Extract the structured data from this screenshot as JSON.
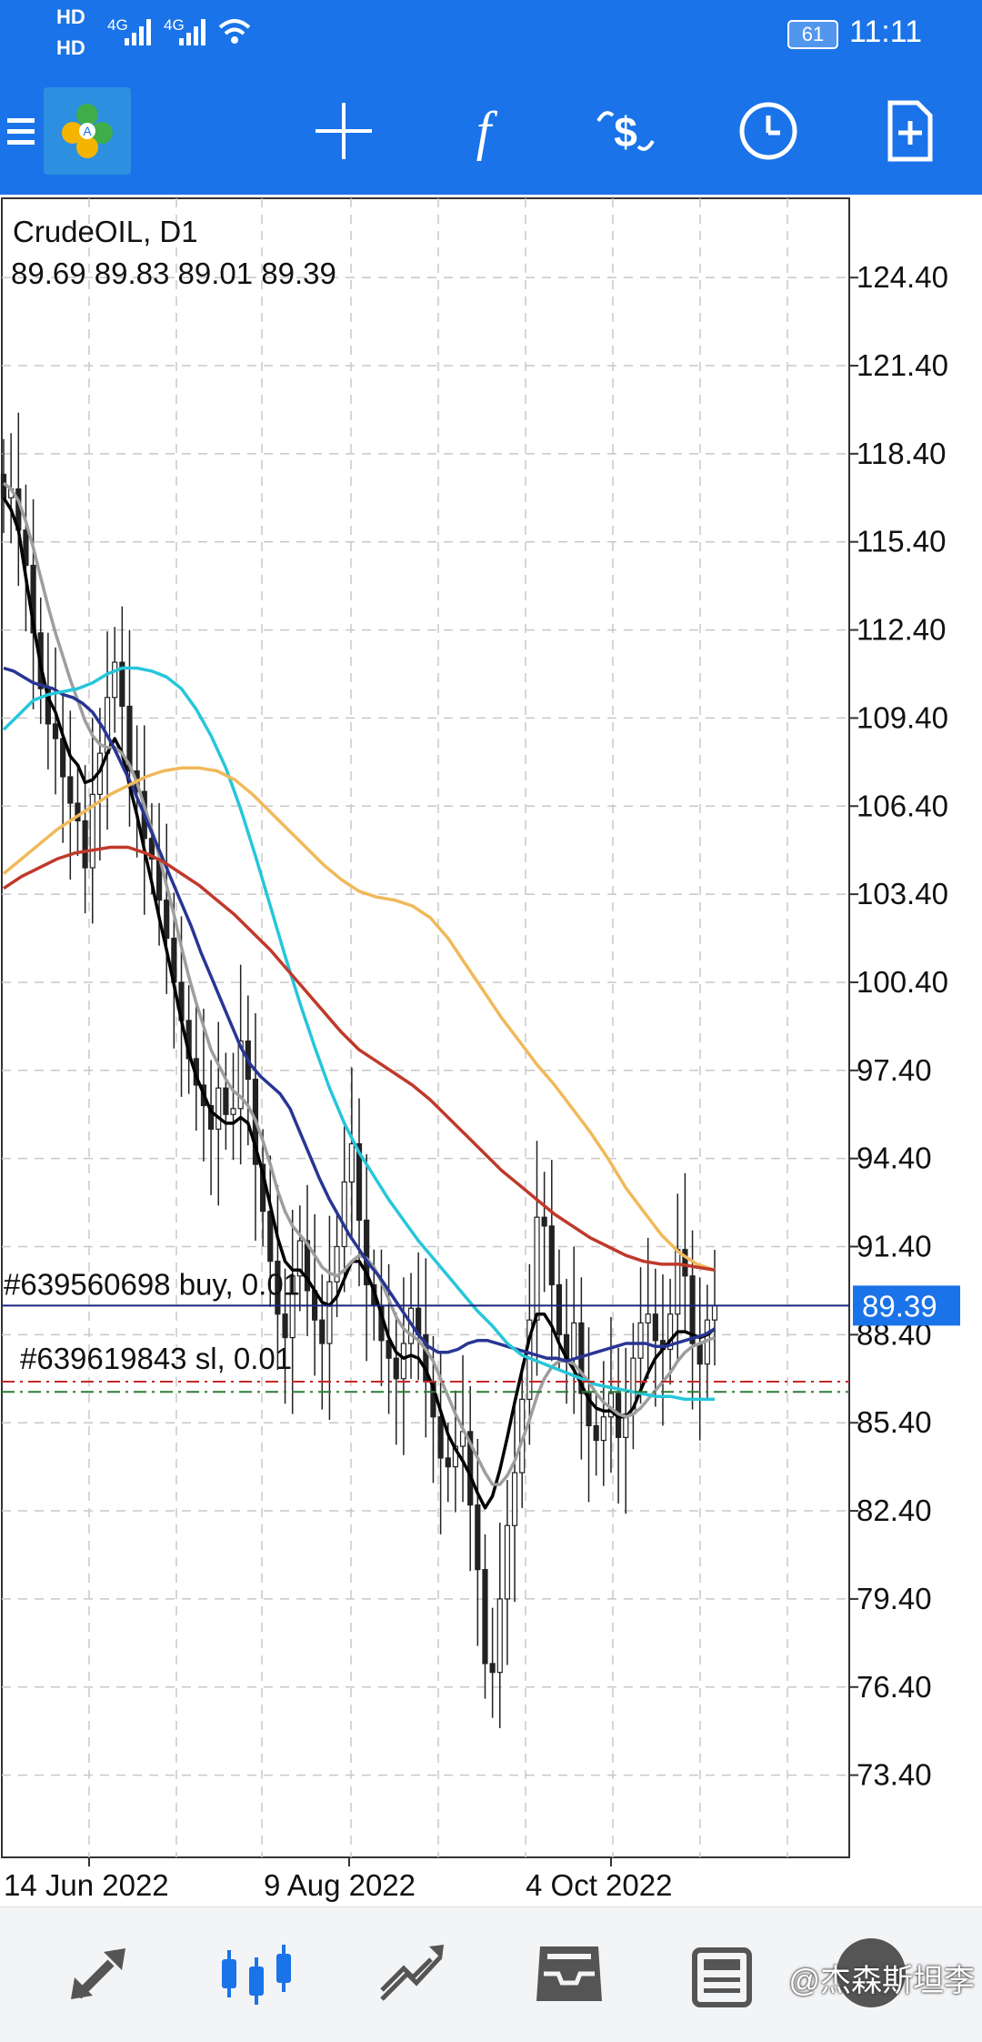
{
  "status_bar": {
    "network_1": "HD",
    "network_2": "HD",
    "signal_1": "4G",
    "signal_2": "4G",
    "battery": "61",
    "time": "11:11"
  },
  "toolbar": {
    "menu_icon": "hamburger-icon",
    "logo_icon": "metatrader-logo",
    "crosshair_icon": "crosshair-icon",
    "indicators_icon": "function-icon",
    "symbols_icon": "currency-exchange-icon",
    "timeframe_icon": "clock-icon",
    "template_icon": "add-document-icon"
  },
  "chart_info": {
    "symbol_timeframe": "CrudeOIL, D1",
    "ohlc": "89.69 89.83 89.01 89.39",
    "current_price": "89.39",
    "order_1": "#639560698 buy, 0.01",
    "order_2": "#639619843 sl, 0.01"
  },
  "chart_data": {
    "type": "candlestick",
    "symbol": "CrudeOIL",
    "timeframe": "D1",
    "y_axis_ticks": [
      "124.40",
      "121.40",
      "118.40",
      "115.40",
      "112.40",
      "109.40",
      "106.40",
      "103.40",
      "100.40",
      "97.40",
      "94.40",
      "91.40",
      "88.40",
      "85.40",
      "82.40",
      "79.40",
      "76.40",
      "73.40"
    ],
    "x_axis_labels": [
      "14 Jun 2022",
      "9 Aug 2022",
      "4 Oct 2022"
    ],
    "ylim": [
      70.6,
      127.1
    ],
    "grid": true,
    "last_price": 89.39,
    "order_levels": [
      {
        "price": 89.39,
        "color": "#1a237e"
      },
      {
        "price": 86.8,
        "color": "#c62828"
      },
      {
        "price": 86.45,
        "color": "#2e7d32"
      }
    ],
    "close_series": [
      116.9,
      117.2,
      115.8,
      114.6,
      112.3,
      110.4,
      109.2,
      108.7,
      107.4,
      106.5,
      105.9,
      104.3,
      106.8,
      108.2,
      110.1,
      111.3,
      109.8,
      107.6,
      106.9,
      105.3,
      104.6,
      103.2,
      101.9,
      100.4,
      99.1,
      97.8,
      96.9,
      96.2,
      95.4,
      96.8,
      95.9,
      96.1,
      98.4,
      97.1,
      94.2,
      92.6,
      90.9,
      89.1,
      88.3,
      90.4,
      91.6,
      89.9,
      88.9,
      88.1,
      90.2,
      91.4,
      93.6,
      94.9,
      92.3,
      90.1,
      89.4,
      88.2,
      87.6,
      86.9,
      88.1,
      89.3,
      88.4,
      86.8,
      85.6,
      84.2,
      83.9,
      84.6,
      85.1,
      82.6,
      80.4,
      77.2,
      76.9,
      79.4,
      81.9,
      83.7,
      86.2,
      88.9,
      92.4,
      92.1,
      90.1,
      88.4,
      87.6,
      88.8,
      86.4,
      85.3,
      84.8,
      85.6,
      86.4,
      84.9,
      85.7,
      87.6,
      88.8,
      89.1,
      88.2,
      87.9,
      89.1,
      91.3,
      90.4,
      88.1,
      87.4,
      88.9,
      89.39
    ],
    "series": [
      {
        "name": "",
        "color": "#000000",
        "values": [
          116.9,
          116.5,
          115.8,
          114.2,
          112.6,
          111.2,
          110.1,
          109.6,
          108.8,
          108.1,
          107.8,
          107.2,
          107.3,
          107.6,
          108.2,
          108.7,
          108.2,
          107.1,
          106.1,
          104.9,
          103.8,
          102.6,
          101.5,
          100.3,
          99.1,
          98.0,
          97.2,
          96.6,
          96.0,
          95.8,
          95.6,
          95.6,
          95.8,
          95.6,
          94.8,
          93.9,
          92.8,
          91.7,
          90.9,
          90.6,
          90.6,
          90.3,
          89.9,
          89.5,
          89.4,
          89.7,
          90.3,
          90.9,
          90.9,
          90.5,
          89.9,
          89.1,
          88.3,
          87.8,
          87.6,
          87.7,
          87.6,
          87.2,
          86.6,
          85.8,
          85.0,
          84.5,
          84.1,
          83.6,
          83.0,
          82.5,
          82.9,
          83.8,
          84.9,
          86.1,
          87.2,
          88.3,
          89.1,
          89.1,
          88.7,
          88.1,
          87.6,
          87.2,
          86.7,
          86.2,
          85.9,
          85.8,
          85.8,
          85.6,
          85.6,
          85.9,
          86.5,
          87.1,
          87.6,
          87.9,
          88.2,
          88.5,
          88.5,
          88.4,
          88.3,
          88.4,
          88.6
        ]
      },
      {
        "name": "",
        "color": "#9e9e9e",
        "values": [
          117.4,
          117.2,
          116.8,
          116.1,
          115.2,
          114.2,
          113.2,
          112.3,
          111.5,
          110.7,
          110.0,
          109.3,
          108.8,
          108.5,
          108.4,
          108.4,
          108.2,
          107.8,
          107.2,
          106.4,
          105.6,
          104.7,
          103.7,
          102.7,
          101.6,
          100.6,
          99.7,
          98.9,
          98.1,
          97.6,
          97.1,
          96.7,
          96.5,
          96.2,
          95.7,
          95.0,
          94.2,
          93.3,
          92.6,
          92.1,
          91.8,
          91.5,
          91.1,
          90.7,
          90.5,
          90.4,
          90.6,
          90.9,
          91.1,
          91.0,
          90.7,
          90.2,
          89.6,
          89.0,
          88.6,
          88.4,
          88.2,
          87.9,
          87.5,
          86.9,
          86.3,
          85.7,
          85.2,
          84.7,
          84.2,
          83.7,
          83.3,
          83.3,
          83.6,
          84.1,
          84.8,
          85.5,
          86.3,
          86.9,
          87.3,
          87.5,
          87.5,
          87.4,
          87.1,
          86.8,
          86.4,
          86.1,
          85.9,
          85.7,
          85.6,
          85.7,
          85.9,
          86.2,
          86.5,
          86.8,
          87.1,
          87.5,
          87.8,
          88.0,
          88.1,
          88.2,
          88.3
        ]
      },
      {
        "name": "",
        "color": "#283593",
        "values": [
          111.1,
          111.0,
          110.8,
          110.6,
          110.5,
          110.4,
          110.2,
          110.1,
          109.9,
          109.6,
          109.1,
          108.5,
          107.8,
          107.1,
          106.3,
          105.5,
          104.7,
          103.9,
          103.1,
          102.3,
          101.4,
          100.6,
          99.8,
          99.0,
          98.2,
          97.6,
          97.2,
          96.9,
          96.6,
          96.1,
          95.3,
          94.5,
          93.7,
          93.0,
          92.4,
          91.8,
          91.3,
          90.8,
          90.4,
          89.9,
          89.4,
          88.9,
          88.4,
          88.0,
          87.8,
          87.8,
          87.9,
          88.1,
          88.2,
          88.2,
          88.1,
          88.0,
          87.9,
          87.8,
          87.7,
          87.6,
          87.6,
          87.5,
          87.6,
          87.7,
          87.8,
          87.9,
          88.0,
          88.1,
          88.1,
          88.1,
          88.0,
          88.0,
          88.1,
          88.2,
          88.3,
          88.4,
          88.6
        ]
      },
      {
        "name": "",
        "color": "#26c6da",
        "values": [
          109.0,
          109.5,
          110.0,
          110.2,
          110.3,
          110.4,
          110.6,
          110.9,
          111.1,
          111.1,
          111.0,
          110.8,
          110.4,
          109.7,
          108.8,
          107.7,
          106.3,
          104.7,
          103.0,
          101.3,
          99.7,
          98.2,
          96.8,
          95.6,
          94.6,
          93.8,
          93.0,
          92.3,
          91.6,
          91.0,
          90.4,
          89.8,
          89.2,
          88.7,
          88.1,
          87.7,
          87.5,
          87.3,
          87.1,
          86.9,
          86.7,
          86.6,
          86.5,
          86.4,
          86.3,
          86.3,
          86.2,
          86.2,
          86.2
        ]
      },
      {
        "name": "",
        "color": "#f0b95a",
        "values": [
          104.1,
          104.6,
          105.1,
          105.6,
          106.0,
          106.4,
          106.8,
          107.1,
          107.4,
          107.6,
          107.7,
          107.7,
          107.6,
          107.3,
          106.8,
          106.2,
          105.6,
          105.0,
          104.4,
          103.9,
          103.5,
          103.3,
          103.2,
          103.0,
          102.6,
          101.9,
          101.0,
          100.1,
          99.2,
          98.4,
          97.6,
          96.9,
          96.1,
          95.3,
          94.4,
          93.4,
          92.6,
          91.8,
          91.2,
          90.8,
          90.6
        ]
      },
      {
        "name": "",
        "color": "#c0392b",
        "values": [
          103.6,
          104.0,
          104.3,
          104.6,
          104.8,
          104.9,
          105.0,
          105.0,
          104.8,
          104.5,
          104.1,
          103.7,
          103.2,
          102.7,
          102.1,
          101.5,
          100.8,
          100.1,
          99.4,
          98.7,
          98.1,
          97.7,
          97.3,
          96.9,
          96.4,
          95.8,
          95.2,
          94.6,
          94.0,
          93.5,
          93.0,
          92.5,
          92.1,
          91.7,
          91.4,
          91.1,
          90.9,
          90.8,
          90.8,
          90.7,
          90.6
        ]
      }
    ]
  },
  "bottom_nav": {
    "items": [
      {
        "name": "quotes",
        "icon": "arrows-up-down-icon"
      },
      {
        "name": "chart",
        "icon": "candlestick-icon"
      },
      {
        "name": "trade",
        "icon": "trend-up-icon"
      },
      {
        "name": "history",
        "icon": "inbox-icon"
      },
      {
        "name": "news",
        "icon": "newspaper-icon"
      }
    ],
    "active_color": "#1a73e8",
    "inactive_color": "#555555"
  },
  "watermark": "@杰森斯坦李"
}
